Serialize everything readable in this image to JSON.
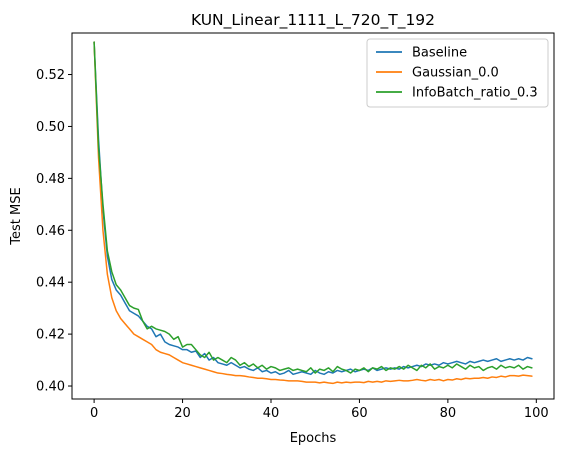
{
  "chart_data": {
    "type": "line",
    "title": "KUN_Linear_1111_L_720_T_192",
    "xlabel": "Epochs",
    "ylabel": "Test MSE",
    "xlim": [
      -5,
      104
    ],
    "ylim": [
      0.395,
      0.536
    ],
    "xticks": [
      0,
      20,
      40,
      60,
      80,
      100
    ],
    "xtick_labels": [
      "0",
      "20",
      "40",
      "60",
      "80",
      "100"
    ],
    "yticks": [
      0.4,
      0.42,
      0.44,
      0.46,
      0.48,
      0.5,
      0.52
    ],
    "ytick_labels": [
      "0.40",
      "0.42",
      "0.44",
      "0.46",
      "0.48",
      "0.50",
      "0.52"
    ],
    "grid": false,
    "legend_position": "top-right",
    "series": [
      {
        "name": "Baseline",
        "color": "#1f77b4",
        "values": [
          0.5325,
          0.495,
          0.468,
          0.45,
          0.441,
          0.437,
          0.435,
          0.432,
          0.429,
          0.428,
          0.427,
          0.425,
          0.423,
          0.422,
          0.419,
          0.42,
          0.417,
          0.416,
          0.4155,
          0.415,
          0.414,
          0.414,
          0.413,
          0.4135,
          0.411,
          0.4125,
          0.41,
          0.411,
          0.409,
          0.4085,
          0.408,
          0.409,
          0.408,
          0.407,
          0.4075,
          0.4065,
          0.406,
          0.407,
          0.4055,
          0.406,
          0.405,
          0.4055,
          0.4045,
          0.405,
          0.406,
          0.4045,
          0.405,
          0.4055,
          0.405,
          0.4045,
          0.406,
          0.405,
          0.4045,
          0.4055,
          0.405,
          0.406,
          0.4055,
          0.406,
          0.4065,
          0.4055,
          0.406,
          0.4065,
          0.406,
          0.407,
          0.406,
          0.4065,
          0.407,
          0.4065,
          0.407,
          0.4065,
          0.4075,
          0.407,
          0.4075,
          0.408,
          0.4075,
          0.4085,
          0.408,
          0.4085,
          0.408,
          0.409,
          0.4085,
          0.409,
          0.4095,
          0.409,
          0.4085,
          0.4095,
          0.409,
          0.4095,
          0.41,
          0.4095,
          0.41,
          0.4105,
          0.4095,
          0.41,
          0.4105,
          0.41,
          0.4105,
          0.41,
          0.411,
          0.4105
        ]
      },
      {
        "name": "Gaussian_0.0",
        "color": "#ff7f0e",
        "values": [
          0.5325,
          0.488,
          0.46,
          0.443,
          0.434,
          0.429,
          0.426,
          0.424,
          0.422,
          0.42,
          0.419,
          0.418,
          0.417,
          0.416,
          0.414,
          0.413,
          0.4125,
          0.412,
          0.411,
          0.41,
          0.409,
          0.4085,
          0.408,
          0.4075,
          0.407,
          0.4065,
          0.406,
          0.4055,
          0.405,
          0.4048,
          0.4045,
          0.4043,
          0.404,
          0.404,
          0.4038,
          0.4035,
          0.4033,
          0.403,
          0.403,
          0.4028,
          0.4025,
          0.4025,
          0.4023,
          0.4022,
          0.402,
          0.402,
          0.402,
          0.4018,
          0.4015,
          0.4015,
          0.4015,
          0.4012,
          0.4015,
          0.4012,
          0.401,
          0.4015,
          0.4012,
          0.4015,
          0.4013,
          0.4015,
          0.4015,
          0.4013,
          0.4018,
          0.4015,
          0.4018,
          0.4015,
          0.402,
          0.4018,
          0.402,
          0.4022,
          0.402,
          0.402,
          0.4022,
          0.4025,
          0.4022,
          0.402,
          0.4025,
          0.4022,
          0.4025,
          0.402,
          0.4025,
          0.4023,
          0.4028,
          0.4025,
          0.403,
          0.4028,
          0.403,
          0.403,
          0.4033,
          0.403,
          0.4035,
          0.4033,
          0.4038,
          0.4035,
          0.404,
          0.404,
          0.4038,
          0.4042,
          0.404,
          0.4038
        ]
      },
      {
        "name": "InfoBatch_ratio_0.3",
        "color": "#2ca02c",
        "values": [
          0.5325,
          0.492,
          0.47,
          0.452,
          0.444,
          0.439,
          0.437,
          0.434,
          0.431,
          0.43,
          0.4295,
          0.425,
          0.422,
          0.423,
          0.422,
          0.4215,
          0.421,
          0.42,
          0.418,
          0.419,
          0.415,
          0.416,
          0.416,
          0.414,
          0.412,
          0.411,
          0.413,
          0.41,
          0.411,
          0.41,
          0.409,
          0.411,
          0.41,
          0.408,
          0.409,
          0.4075,
          0.4085,
          0.407,
          0.408,
          0.4065,
          0.4075,
          0.407,
          0.406,
          0.4065,
          0.407,
          0.406,
          0.4065,
          0.406,
          0.4055,
          0.407,
          0.405,
          0.4065,
          0.406,
          0.407,
          0.4055,
          0.4075,
          0.4065,
          0.406,
          0.405,
          0.4065,
          0.406,
          0.407,
          0.4055,
          0.407,
          0.4065,
          0.4075,
          0.406,
          0.407,
          0.4065,
          0.4075,
          0.4065,
          0.408,
          0.407,
          0.406,
          0.408,
          0.407,
          0.4085,
          0.4065,
          0.4075,
          0.407,
          0.408,
          0.407,
          0.4085,
          0.4075,
          0.4065,
          0.408,
          0.407,
          0.4075,
          0.406,
          0.407,
          0.4075,
          0.4065,
          0.408,
          0.407,
          0.4075,
          0.407,
          0.408,
          0.4065,
          0.4075,
          0.407
        ]
      }
    ]
  }
}
